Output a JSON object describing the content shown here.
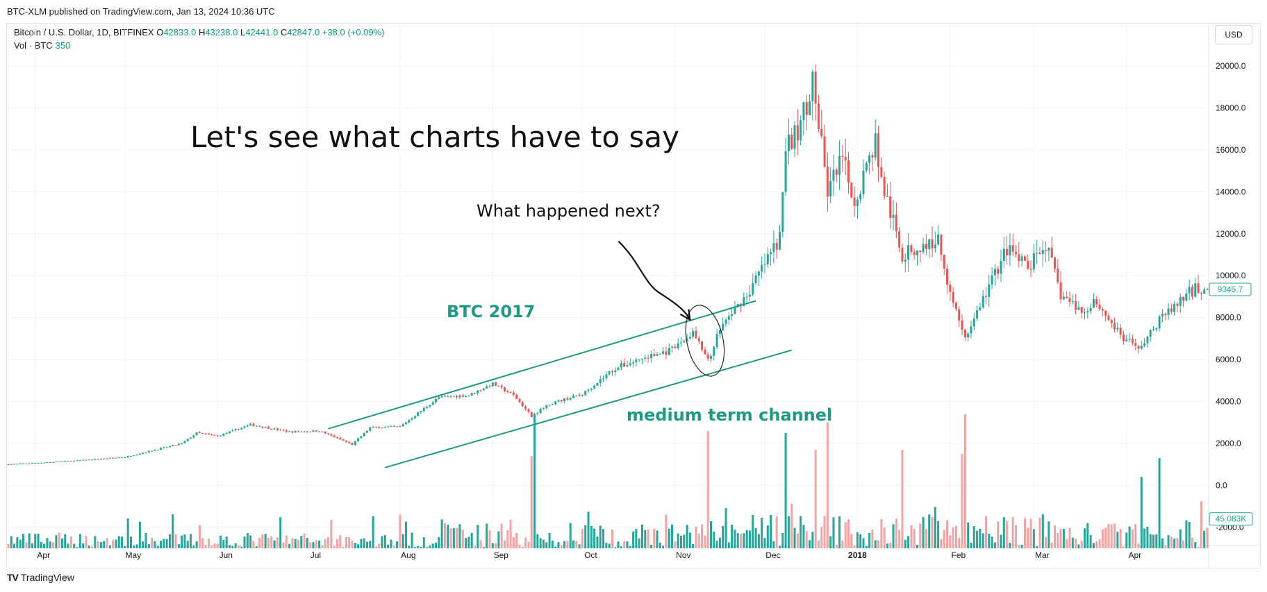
{
  "header": {
    "published": "BTC-XLM published on TradingView.com, Jan 13, 2024 10:36 UTC",
    "symbol": "Bitcoin / U.S. Dollar, 1D, BITFINEX",
    "ohlc": {
      "o_label": "O",
      "o": "42833.0",
      "h_label": "H",
      "h": "43238.0",
      "l_label": "L",
      "l": "42441.0",
      "c_label": "C",
      "c": "42847.0",
      "change": "+38.0 (+0.09%)"
    },
    "vol_label": "Vol · BTC",
    "vol_value": "350",
    "currency": "USD"
  },
  "footer": {
    "brand": "TradingView",
    "logo": "TV"
  },
  "colors": {
    "up": "#26a69a",
    "down": "#ef5350",
    "up_vol": "#26a69a",
    "down_vol": "#f4a3a3",
    "annotation": "#1c9a82",
    "grid": "#f0f3fa"
  },
  "chart_data": {
    "type": "candlestick",
    "title": "",
    "y_ticks": [
      "20000.0",
      "18000.0",
      "16000.0",
      "14000.0",
      "12000.0",
      "10000.0",
      "8000.0",
      "6000.0",
      "4000.0",
      "2000.0",
      "0.0",
      "-2000.0"
    ],
    "ylim": [
      -3000,
      20500
    ],
    "x_ticks": [
      "Apr",
      "May",
      "Jun",
      "Jul",
      "Aug",
      "Sep",
      "Oct",
      "Nov",
      "Dec",
      "2018",
      "Feb",
      "Mar",
      "Apr"
    ],
    "last_price": "9345.7",
    "last_volume": "45.083K",
    "price_path": {
      "start": "2017-03-23",
      "end": "2018-04-28",
      "keypoints": [
        [
          "2017-03-23",
          1000
        ],
        [
          "2017-04-15",
          1180
        ],
        [
          "2017-05-01",
          1350
        ],
        [
          "2017-05-20",
          2000
        ],
        [
          "2017-05-25",
          2500
        ],
        [
          "2017-06-01",
          2350
        ],
        [
          "2017-06-12",
          2900
        ],
        [
          "2017-06-25",
          2550
        ],
        [
          "2017-07-05",
          2600
        ],
        [
          "2017-07-16",
          1950
        ],
        [
          "2017-07-22",
          2750
        ],
        [
          "2017-08-01",
          2800
        ],
        [
          "2017-08-14",
          4200
        ],
        [
          "2017-08-24",
          4300
        ],
        [
          "2017-09-01",
          4850
        ],
        [
          "2017-09-08",
          4300
        ],
        [
          "2017-09-14",
          3300
        ],
        [
          "2017-09-20",
          3900
        ],
        [
          "2017-10-01",
          4350
        ],
        [
          "2017-10-12",
          5600
        ],
        [
          "2017-10-20",
          6000
        ],
        [
          "2017-10-31",
          6450
        ],
        [
          "2017-11-07",
          7300
        ],
        [
          "2017-11-12",
          5900
        ],
        [
          "2017-11-16",
          7500
        ],
        [
          "2017-11-26",
          9300
        ],
        [
          "2017-12-06",
          11800
        ],
        [
          "2017-12-08",
          16000
        ],
        [
          "2017-12-12",
          16800
        ],
        [
          "2017-12-17",
          19300
        ],
        [
          "2017-12-22",
          14000
        ],
        [
          "2017-12-27",
          15500
        ],
        [
          "2017-12-31",
          13500
        ],
        [
          "2018-01-07",
          16500
        ],
        [
          "2018-01-09",
          14500
        ],
        [
          "2018-01-16",
          11000
        ],
        [
          "2018-01-22",
          11300
        ],
        [
          "2018-01-28",
          11700
        ],
        [
          "2018-02-01",
          9300
        ],
        [
          "2018-02-06",
          6950
        ],
        [
          "2018-02-10",
          8300
        ],
        [
          "2018-02-20",
          11300
        ],
        [
          "2018-02-27",
          10300
        ],
        [
          "2018-03-05",
          11500
        ],
        [
          "2018-03-10",
          9100
        ],
        [
          "2018-03-18",
          8200
        ],
        [
          "2018-03-21",
          8900
        ],
        [
          "2018-03-31",
          6950
        ],
        [
          "2018-04-06",
          6600
        ],
        [
          "2018-04-12",
          7900
        ],
        [
          "2018-04-24",
          9400
        ],
        [
          "2018-04-28",
          9345
        ]
      ]
    },
    "volume_spikes": [
      [
        "2017-09-15",
        3300
      ],
      [
        "2017-11-12",
        2600
      ],
      [
        "2017-12-08",
        2500
      ],
      [
        "2017-12-22",
        3000
      ],
      [
        "2018-01-16",
        1700
      ],
      [
        "2018-02-06",
        3400
      ],
      [
        "2018-02-05",
        1500
      ],
      [
        "2017-09-14",
        1400
      ],
      [
        "2017-12-18",
        1700
      ],
      [
        "2018-04-06",
        400
      ],
      [
        "2018-04-12",
        400
      ]
    ],
    "annotations": {
      "headline": "Let's see what charts have to say",
      "question": "What happened next?",
      "label_btc": "BTC 2017",
      "label_channel": "medium term channel"
    },
    "channel_lines": [
      {
        "from": [
          "2017-07-08",
          2700
        ],
        "to": [
          "2017-11-28",
          8800
        ]
      },
      {
        "from": [
          "2017-07-27",
          850
        ],
        "to": [
          "2017-12-10",
          6450
        ]
      }
    ]
  }
}
